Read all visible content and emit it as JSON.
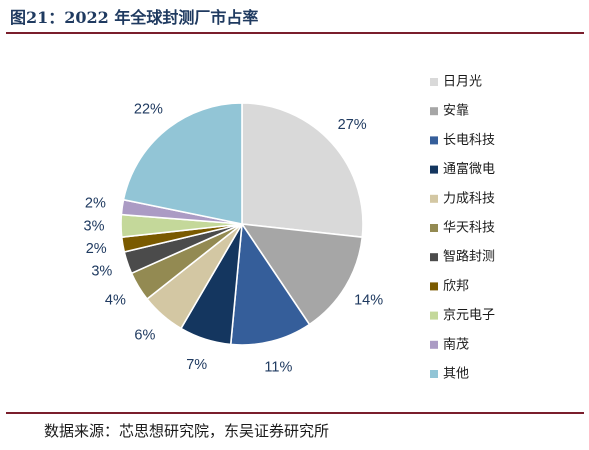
{
  "figure": {
    "title": "图21：2022 年全球封测厂市占率",
    "source": "数据来源：芯思想研究院，东吴证券研究所"
  },
  "chart_data": {
    "type": "pie",
    "title": "图21：2022 年全球封测厂市占率",
    "start_angle": "12 o'clock",
    "direction": "clockwise",
    "legend_position": "right",
    "slices": [
      {
        "name": "日月光",
        "value": 27,
        "label": "27%",
        "color": "#d9d9d9"
      },
      {
        "name": "安靠",
        "value": 14,
        "label": "14%",
        "color": "#a6a6a6"
      },
      {
        "name": "长电科技",
        "value": 11,
        "label": "11%",
        "color": "#355e9a"
      },
      {
        "name": "通富微电",
        "value": 7,
        "label": "7%",
        "color": "#14365f"
      },
      {
        "name": "力成科技",
        "value": 6,
        "label": "6%",
        "color": "#d3c7a3"
      },
      {
        "name": "华天科技",
        "value": 4,
        "label": "4%",
        "color": "#938a52"
      },
      {
        "name": "智路封测",
        "value": 3,
        "label": "3%",
        "color": "#4b4b4b"
      },
      {
        "name": "欣邦",
        "value": 2,
        "label": "2%",
        "color": "#7a5a00"
      },
      {
        "name": "京元电子",
        "value": 3,
        "label": "3%",
        "color": "#c4d89a"
      },
      {
        "name": "南茂",
        "value": 2,
        "label": "2%",
        "color": "#ab9bc4"
      },
      {
        "name": "其他",
        "value": 22,
        "label": "22%",
        "color": "#92c5d6"
      }
    ]
  }
}
